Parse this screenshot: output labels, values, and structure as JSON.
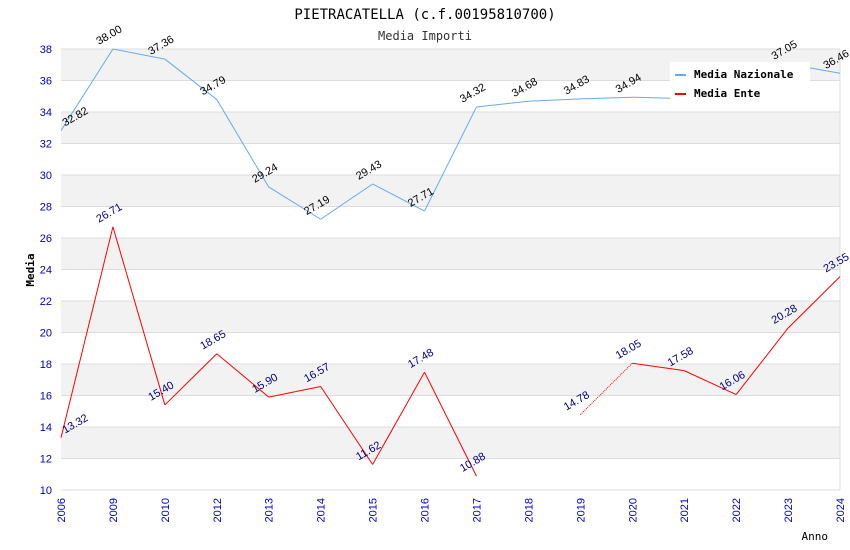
{
  "chart_data": {
    "type": "line",
    "title": "PIETRACATELLA (c.f.00195810700)",
    "subtitle": "Media Importi",
    "xlabel": "Anno",
    "ylabel": "Media",
    "ylim": [
      10,
      38
    ],
    "yticks": [
      10,
      12,
      14,
      16,
      18,
      20,
      22,
      24,
      26,
      28,
      30,
      32,
      34,
      36,
      38
    ],
    "categories": [
      "2006",
      "2009",
      "2010",
      "2012",
      "2013",
      "2014",
      "2015",
      "2016",
      "2017",
      "2018",
      "2019",
      "2020",
      "2021",
      "2022",
      "2023",
      "2024"
    ],
    "legend_position": "top-right",
    "series": [
      {
        "name": "Media Nazionale",
        "color": "#66aaee",
        "label_color": "#000000",
        "values": [
          32.82,
          38.0,
          37.36,
          34.79,
          29.24,
          27.19,
          29.43,
          27.71,
          34.32,
          34.68,
          34.83,
          34.94,
          34.85,
          35.9,
          37.05,
          36.46
        ],
        "labels": [
          "32.82",
          "38.00",
          "37.36",
          "34.79",
          "29.24",
          "27.19",
          "29.43",
          "27.71",
          "34.32",
          "34.68",
          "34.83",
          "34.94",
          null,
          null,
          "37.05",
          "36.46"
        ]
      },
      {
        "name": "Media Ente",
        "color": "#ff0000",
        "label_color": "#000080",
        "values": [
          13.32,
          26.71,
          15.4,
          18.65,
          15.9,
          16.57,
          11.62,
          17.48,
          10.88,
          null,
          14.78,
          18.05,
          17.58,
          16.06,
          20.28,
          23.55
        ],
        "labels": [
          "13.32",
          "26.71",
          "15.40",
          "18.65",
          "15.90",
          "16.57",
          "11.62",
          "17.48",
          "10.88",
          null,
          "14.78",
          "18.05",
          "17.58",
          "16.06",
          "20.28",
          "23.55"
        ]
      }
    ]
  }
}
